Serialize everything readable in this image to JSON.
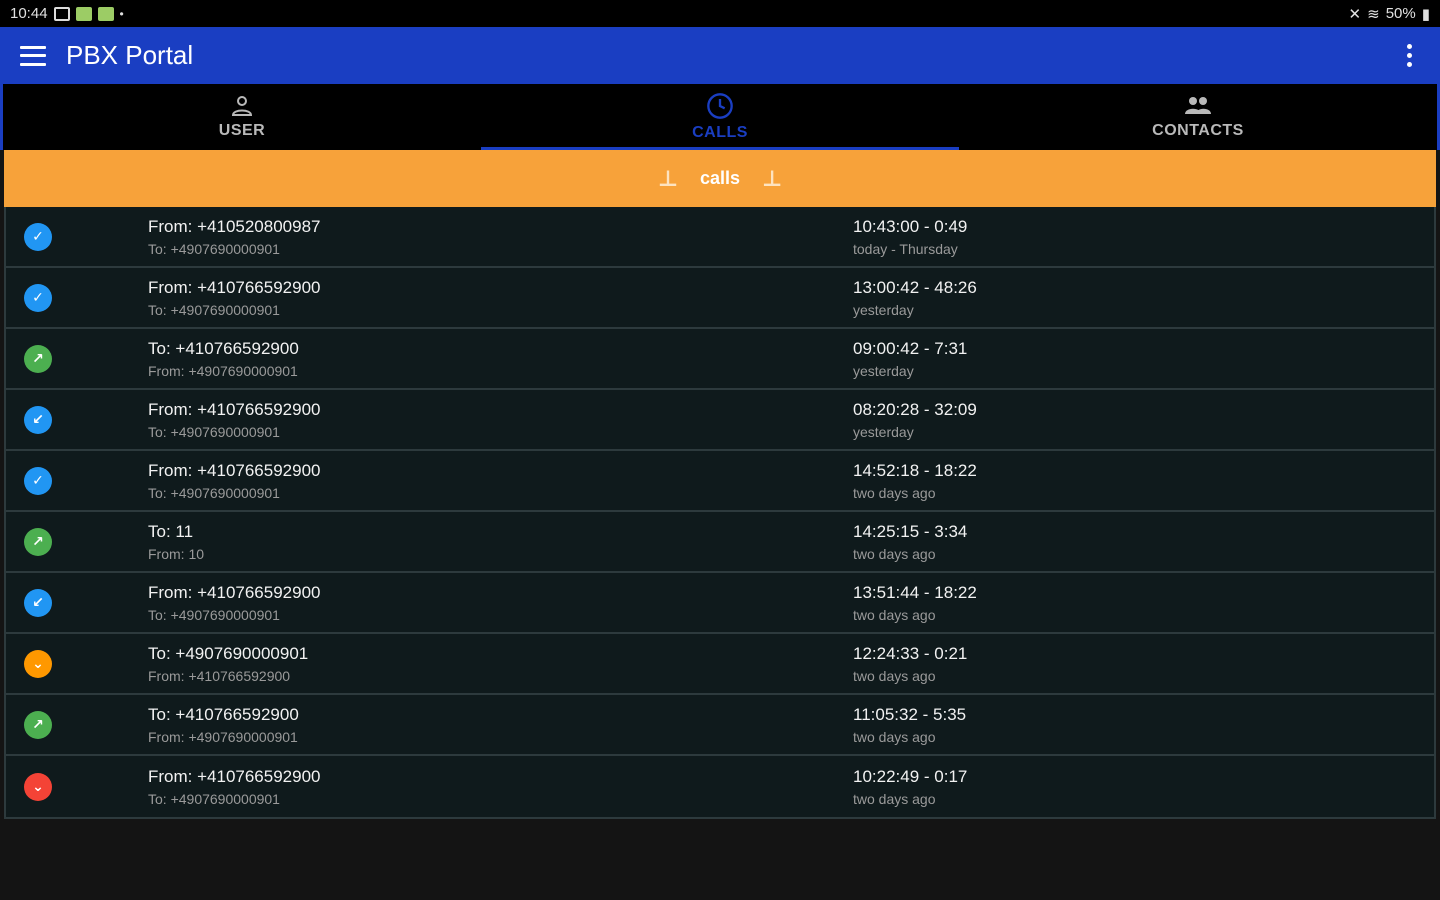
{
  "statusbar": {
    "time": "10:44",
    "battery": "50%"
  },
  "appbar": {
    "title": "PBX Portal"
  },
  "tabs": [
    {
      "label": "USER",
      "icon": "person-icon"
    },
    {
      "label": "CALLS",
      "icon": "clock-icon"
    },
    {
      "label": "CONTACTS",
      "icon": "people-icon"
    }
  ],
  "calls_header": {
    "label": "calls"
  },
  "calls": [
    {
      "status": "incoming",
      "color": "#2196f3",
      "glyph": "✓",
      "primary": "From: +410520800987",
      "secondary": "To: +4907690000901",
      "time": "10:43:00 - 0:49",
      "day": "today - Thursday"
    },
    {
      "status": "incoming",
      "color": "#2196f3",
      "glyph": "✓",
      "primary": "From: +410766592900",
      "secondary": "To: +4907690000901",
      "time": "13:00:42 - 48:26",
      "day": "yesterday"
    },
    {
      "status": "outgoing",
      "color": "#4caf50",
      "glyph": "↗",
      "primary": "To: +410766592900",
      "secondary": "From: +4907690000901",
      "time": "09:00:42 - 7:31",
      "day": "yesterday"
    },
    {
      "status": "incoming",
      "color": "#2196f3",
      "glyph": "↙",
      "primary": "From: +410766592900",
      "secondary": "To: +4907690000901",
      "time": "08:20:28 - 32:09",
      "day": "yesterday"
    },
    {
      "status": "incoming",
      "color": "#2196f3",
      "glyph": "✓",
      "primary": "From: +410766592900",
      "secondary": "To: +4907690000901",
      "time": "14:52:18 - 18:22",
      "day": "two days ago"
    },
    {
      "status": "outgoing",
      "color": "#4caf50",
      "glyph": "↗",
      "primary": "To: 11",
      "secondary": "From: 10",
      "time": "14:25:15 - 3:34",
      "day": "two days ago"
    },
    {
      "status": "incoming",
      "color": "#2196f3",
      "glyph": "↙",
      "primary": "From: +410766592900",
      "secondary": "To: +4907690000901",
      "time": "13:51:44 - 18:22",
      "day": "two days ago"
    },
    {
      "status": "unanswered",
      "color": "#ff9800",
      "glyph": "⌄",
      "primary": "To: +4907690000901",
      "secondary": "From: +410766592900",
      "time": "12:24:33 - 0:21",
      "day": "two days ago"
    },
    {
      "status": "outgoing",
      "color": "#4caf50",
      "glyph": "↗",
      "primary": "To: +410766592900",
      "secondary": "From: +4907690000901",
      "time": "11:05:32 - 5:35",
      "day": "two days ago"
    },
    {
      "status": "missed",
      "color": "#f44336",
      "glyph": "⌄",
      "primary": "From: +410766592900",
      "secondary": "To: +4907690000901",
      "time": "10:22:49 - 0:17",
      "day": "two days ago"
    }
  ]
}
